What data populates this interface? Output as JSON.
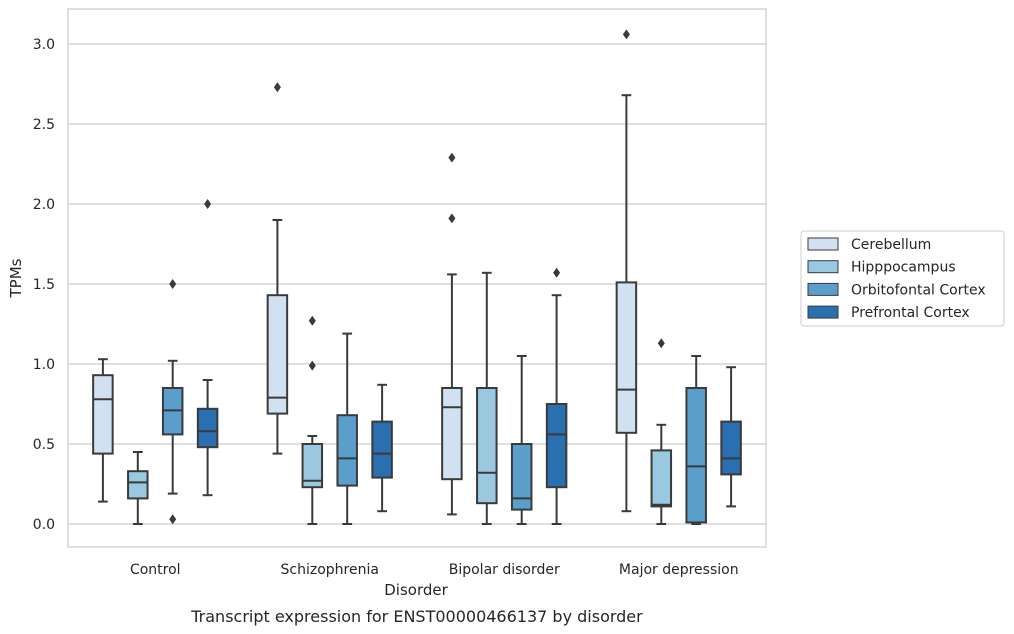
{
  "caption": "Transcript expression for ENST00000466137 by disorder",
  "chart_data": {
    "type": "boxplot",
    "xlabel": "Disorder",
    "ylabel": "TPMs",
    "ylim": [
      -0.15,
      3.22
    ],
    "yticks": [
      0.0,
      0.5,
      1.0,
      1.5,
      2.0,
      2.5,
      3.0
    ],
    "ytick_labels": [
      "0.0",
      "0.5",
      "1.0",
      "1.5",
      "2.0",
      "2.5",
      "3.0"
    ],
    "grid": "horizontal",
    "legend_position": "right",
    "categories": [
      "Control",
      "Schizophrenia",
      "Bipolar disorder",
      "Major depression"
    ],
    "series": [
      {
        "name": "Cerebellum",
        "color": "#d2e1f1",
        "boxes": [
          {
            "whislo": 0.14,
            "q1": 0.44,
            "med": 0.78,
            "q3": 0.93,
            "whishi": 1.03,
            "fliers": []
          },
          {
            "whislo": 0.44,
            "q1": 0.69,
            "med": 0.79,
            "q3": 1.43,
            "whishi": 1.9,
            "fliers": [
              2.73
            ]
          },
          {
            "whislo": 0.06,
            "q1": 0.28,
            "med": 0.73,
            "q3": 0.85,
            "whishi": 1.56,
            "fliers": [
              1.91,
              2.29
            ]
          },
          {
            "whislo": 0.08,
            "q1": 0.57,
            "med": 0.84,
            "q3": 1.51,
            "whishi": 2.68,
            "fliers": [
              3.06
            ]
          }
        ]
      },
      {
        "name": "Hipppocampus",
        "color": "#9ac8e0",
        "boxes": [
          {
            "whislo": 0.0,
            "q1": 0.16,
            "med": 0.26,
            "q3": 0.33,
            "whishi": 0.45,
            "fliers": []
          },
          {
            "whislo": 0.0,
            "q1": 0.23,
            "med": 0.27,
            "q3": 0.5,
            "whishi": 0.55,
            "fliers": [
              0.99,
              1.27
            ]
          },
          {
            "whislo": 0.0,
            "q1": 0.13,
            "med": 0.32,
            "q3": 0.85,
            "whishi": 1.57,
            "fliers": []
          },
          {
            "whislo": 0.0,
            "q1": 0.11,
            "med": 0.12,
            "q3": 0.46,
            "whishi": 0.62,
            "fliers": [
              1.13
            ]
          }
        ]
      },
      {
        "name": "Orbitofontal Cortex",
        "color": "#5a9fcc",
        "boxes": [
          {
            "whislo": 0.19,
            "q1": 0.56,
            "med": 0.71,
            "q3": 0.85,
            "whishi": 1.02,
            "fliers": [
              0.03,
              1.5
            ]
          },
          {
            "whislo": 0.0,
            "q1": 0.24,
            "med": 0.41,
            "q3": 0.68,
            "whishi": 1.19,
            "fliers": []
          },
          {
            "whislo": 0.0,
            "q1": 0.09,
            "med": 0.16,
            "q3": 0.5,
            "whishi": 1.05,
            "fliers": []
          },
          {
            "whislo": 0.0,
            "q1": 0.01,
            "med": 0.36,
            "q3": 0.85,
            "whishi": 1.05,
            "fliers": []
          }
        ]
      },
      {
        "name": "Prefrontal Cortex",
        "color": "#2a6fb0",
        "boxes": [
          {
            "whislo": 0.18,
            "q1": 0.48,
            "med": 0.58,
            "q3": 0.72,
            "whishi": 0.9,
            "fliers": [
              2.0
            ]
          },
          {
            "whislo": 0.08,
            "q1": 0.29,
            "med": 0.44,
            "q3": 0.64,
            "whishi": 0.87,
            "fliers": []
          },
          {
            "whislo": 0.0,
            "q1": 0.23,
            "med": 0.56,
            "q3": 0.75,
            "whishi": 1.43,
            "fliers": [
              1.57
            ]
          },
          {
            "whislo": 0.11,
            "q1": 0.31,
            "med": 0.41,
            "q3": 0.64,
            "whishi": 0.98,
            "fliers": []
          }
        ]
      }
    ]
  }
}
